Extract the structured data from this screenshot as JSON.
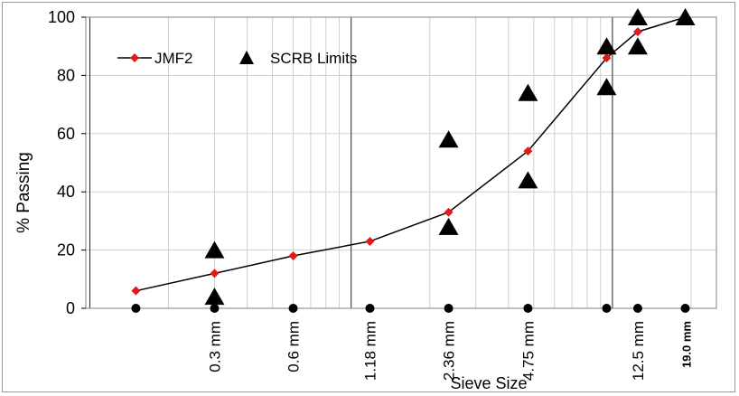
{
  "chart_data": {
    "type": "scatter",
    "title": "",
    "xlabel": "Sieve Size",
    "ylabel": "% Passing",
    "x_scale": "log",
    "ylim": [
      0,
      100
    ],
    "yticks": [
      0,
      20,
      40,
      60,
      80,
      100
    ],
    "grid": true,
    "legend_position": "top-left",
    "colors": {
      "jmf": "#e31a1c",
      "line": "#000000",
      "limits": "#000000"
    },
    "series": [
      {
        "name": "JMF2",
        "marker": "diamond",
        "x": [
          0.15,
          0.3,
          0.6,
          1.18,
          2.36,
          4.75,
          9.5,
          12.5,
          19.0
        ],
        "y": [
          6,
          12,
          18,
          23,
          33,
          54,
          86,
          95,
          100
        ]
      },
      {
        "name": "SCRB Limits",
        "marker": "triangle",
        "x": [
          0.3,
          0.3,
          2.36,
          2.36,
          4.75,
          4.75,
          9.5,
          9.5,
          12.5,
          12.5,
          19.0
        ],
        "y": [
          4,
          20,
          28,
          58,
          44,
          74,
          76,
          90,
          90,
          100,
          100
        ]
      }
    ],
    "sieve_points_x": [
      0.15,
      0.3,
      0.6,
      1.18,
      2.36,
      4.75,
      9.5,
      12.5,
      19.0
    ],
    "tick_labels": [
      {
        "x": 0.3,
        "label": "0.3 mm",
        "bold": false
      },
      {
        "x": 0.6,
        "label": "0.6 mm",
        "bold": false
      },
      {
        "x": 1.18,
        "label": "1.18 mm",
        "bold": false
      },
      {
        "x": 2.36,
        "label": "2.36 mm",
        "bold": false
      },
      {
        "x": 4.75,
        "label": "4.75 mm",
        "bold": false
      },
      {
        "x": 12.5,
        "label": "12.5 mm",
        "bold": false
      },
      {
        "x": 19.0,
        "label": "19.0 mm",
        "bold": true
      }
    ]
  }
}
